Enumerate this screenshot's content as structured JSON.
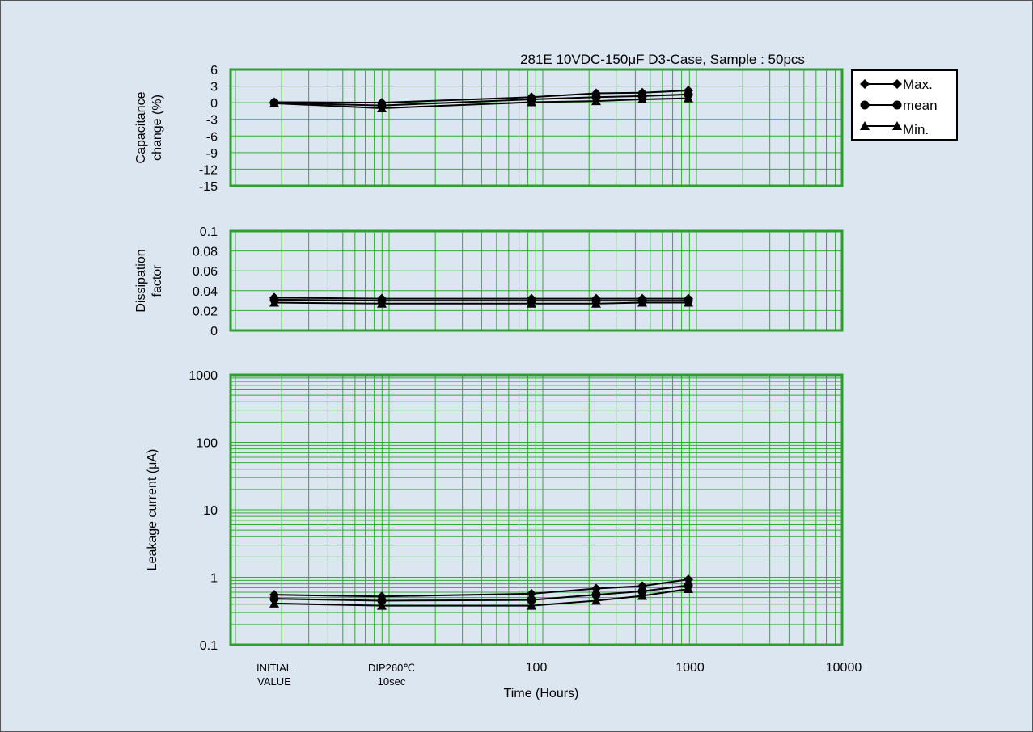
{
  "chart_data": {
    "type": "line",
    "title": "281E 10VDC-150μF D3-Case, Sample : 50pcs",
    "xlabel": "Time (Hours)",
    "x_tick_labels": [
      {
        "lines": [
          "INITIAL",
          "VALUE"
        ]
      },
      {
        "lines": [
          "DIP260℃",
          "10sec"
        ]
      },
      {
        "lines": [
          "100"
        ]
      },
      {
        "lines": [
          "1000"
        ]
      },
      {
        "lines": [
          "10000"
        ]
      }
    ],
    "x_scale": "log",
    "x": [
      "INITIAL VALUE",
      "DIP260℃ 10sec",
      "100",
      "250",
      "500",
      "1000"
    ],
    "legend": {
      "placement": "right of top panel",
      "entries": [
        {
          "label": "Max.",
          "marker": "diamond"
        },
        {
          "label": "mean",
          "marker": "circle"
        },
        {
          "label": "Min.",
          "marker": "triangle"
        }
      ]
    },
    "colors": {
      "grid": "#33aa33",
      "frame": "#2e9e2e",
      "series": "#000000",
      "background": "#dce6f1"
    },
    "panels": [
      {
        "id": "capacitance",
        "ylabel": [
          "Capacitance",
          "change  (%)"
        ],
        "ylim": [
          -15,
          6
        ],
        "yticks": [
          6,
          3,
          0,
          -3,
          -6,
          -9,
          -12,
          -15
        ],
        "ytick_labels": [
          "6",
          "3",
          "0",
          "-3",
          "-6",
          "-9",
          "-12",
          "-15"
        ],
        "y_scale": "linear",
        "series": [
          {
            "name": "Max.",
            "values": [
              0.1,
              0.0,
              1.0,
              1.7,
              1.8,
              2.2
            ]
          },
          {
            "name": "mean",
            "values": [
              0.0,
              -0.5,
              0.6,
              1.0,
              1.2,
              1.5
            ]
          },
          {
            "name": "Min.",
            "values": [
              -0.1,
              -1.0,
              0.1,
              0.3,
              0.6,
              0.8
            ]
          }
        ]
      },
      {
        "id": "dissipation",
        "ylabel": [
          "Dissipation",
          "factor"
        ],
        "ylim": [
          0,
          0.1
        ],
        "yticks": [
          0.1,
          0.08,
          0.06,
          0.04,
          0.02,
          0
        ],
        "ytick_labels": [
          "0.1",
          "0.08",
          "0.06",
          "0.04",
          "0.02",
          "0"
        ],
        "y_scale": "linear",
        "series": [
          {
            "name": "Max.",
            "values": [
              0.033,
              0.032,
              0.032,
              0.032,
              0.032,
              0.032
            ]
          },
          {
            "name": "mean",
            "values": [
              0.031,
              0.03,
              0.03,
              0.03,
              0.03,
              0.03
            ]
          },
          {
            "name": "Min.",
            "values": [
              0.028,
              0.027,
              0.027,
              0.027,
              0.028,
              0.028
            ]
          }
        ]
      },
      {
        "id": "leakage",
        "ylabel": [
          "Leakage  current (μA)"
        ],
        "ylim": [
          0.1,
          1000
        ],
        "yticks": [
          1000,
          100,
          10,
          1,
          0.1
        ],
        "ytick_labels": [
          "1000",
          "100",
          "10",
          "1",
          "0.1"
        ],
        "y_scale": "log",
        "series": [
          {
            "name": "Max.",
            "values": [
              0.55,
              0.52,
              0.57,
              0.68,
              0.74,
              0.93
            ]
          },
          {
            "name": "mean",
            "values": [
              0.48,
              0.45,
              0.46,
              0.55,
              0.62,
              0.76
            ]
          },
          {
            "name": "Min.",
            "values": [
              0.41,
              0.38,
              0.38,
              0.45,
              0.53,
              0.67
            ]
          }
        ]
      }
    ]
  }
}
